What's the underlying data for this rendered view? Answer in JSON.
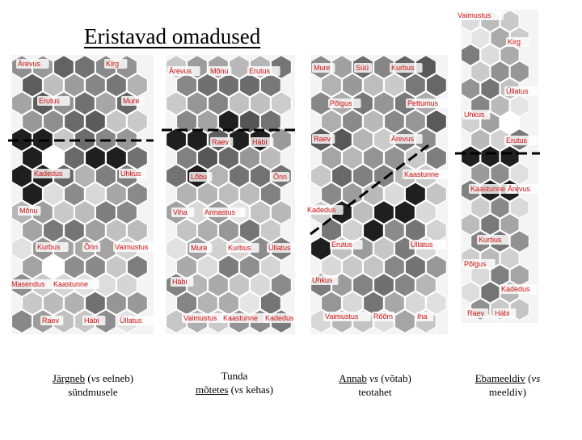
{
  "title": "Eristavad omadused",
  "colors": {
    "label": "#d01010",
    "divider": "#000000",
    "background": "#ffffff"
  },
  "maps": [
    {
      "id": "map1",
      "labels": [
        "Ärevus",
        "Kirg",
        "Erutus",
        "Mure",
        "Kadedus",
        "Uhkus",
        "Mõnu",
        "Kurbus",
        "Õnn",
        "Vaimustus",
        "Masendus",
        "Kaastunne",
        "Raev",
        "Häbi",
        "Üllatus"
      ],
      "caption": {
        "t1": "Järgneb",
        "t2": " (",
        "t3": "vs",
        "t4": " eelneb)",
        "t5": "sündmusele"
      }
    },
    {
      "id": "map2",
      "labels": [
        "Ärevus",
        "Mõnu",
        "Erutus",
        "Raev",
        "Häbi",
        "Lõbu",
        "Õnn",
        "Viha",
        "Armastus",
        "Mure",
        "Kurbus",
        "Üllatus",
        "Häbi",
        "Vaimustus",
        "Kaastunne",
        "Kadedus"
      ],
      "caption": {
        "t1": "Tunda",
        "t2": "mõtetes",
        "t3": " (",
        "t4": "vs",
        "t5": " kehas)"
      }
    },
    {
      "id": "map3",
      "labels": [
        "Mure",
        "Süü",
        "Kurbus",
        "Põlgus",
        "Pettumus",
        "Raev",
        "Ärevus",
        "Kaastunne",
        "Kadedus",
        "Erutus",
        "Üllatus",
        "Uhkus",
        "Vaimustus",
        "Rõõm",
        "Iha"
      ],
      "caption": {
        "t1": "Annab",
        "t2": " ",
        "t3": "vs",
        "t4": " (võtab)",
        "t5": "teotahet"
      }
    },
    {
      "id": "map4",
      "labels": [
        "Vaimustus",
        "Kirg",
        "Üllatus",
        "Uhkus",
        "Erutus",
        "Kaastunne",
        "Ärevus",
        "Kurbus",
        "Põlgus",
        "Kadedus",
        "Raev",
        "Häbi"
      ],
      "caption": {
        "t1": "Ebameeldiv",
        "t2": " (",
        "t3": "vs",
        "t4": "meeldiv)"
      }
    }
  ]
}
